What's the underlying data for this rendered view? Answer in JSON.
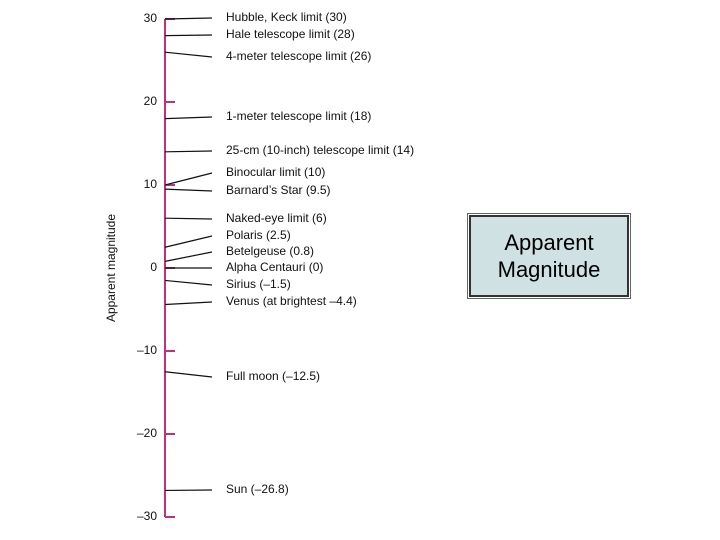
{
  "chart_data": {
    "type": "scale",
    "y_label": "Apparent magnitude",
    "ylim": [
      -30,
      30
    ],
    "yticks": [
      {
        "value": -30,
        "label": "–30"
      },
      {
        "value": -20,
        "label": "–20"
      },
      {
        "value": -10,
        "label": "–10"
      },
      0,
      10,
      20,
      30
    ],
    "color": "#c2307d",
    "categories": [
      "Hubble, Keck limit (30)",
      "Hale telescope limit (28)",
      "4-meter telescope limit (26)",
      "1-meter telescope limit (18)",
      "25-cm (10-inch) telescope limit (14)",
      "Binocular limit (10)",
      "Barnard’s Star (9.5)",
      "Naked-eye limit (6)",
      "Polaris (2.5)",
      "Betelgeuse (0.8)",
      "Alpha Centauri (0)",
      "Sirius (–1.5)",
      "Venus (at brightest –4.4)",
      "Full moon (–12.5)",
      "Sun (–26.8)"
    ],
    "values": [
      30,
      28,
      26,
      18,
      14,
      10,
      9.5,
      6,
      2.5,
      0.8,
      0,
      -1.5,
      -4.4,
      -12.5,
      -26.8
    ]
  },
  "box_title": [
    "Apparent",
    "Magnitude"
  ]
}
